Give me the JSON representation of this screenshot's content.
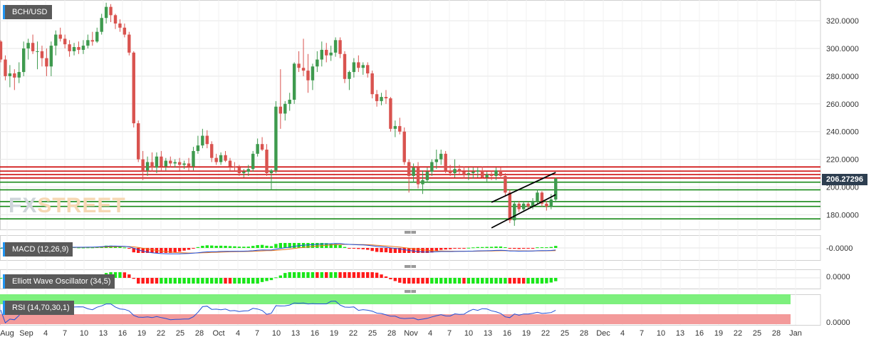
{
  "symbol": "BCH/USD",
  "current_price_label": "206.27296",
  "watermark": {
    "part1": "FX",
    "part2": "STREET"
  },
  "indicators": {
    "macd": "MACD (12,26,9)",
    "ewo": "Elliott Wave Oscillator (34,5)",
    "rsi": "RSI (14,70,30,1)"
  },
  "colors": {
    "up": "#3e9a4e",
    "down": "#d9534f",
    "grid": "#e6e6e6",
    "resistance": "#cc0000",
    "support": "#1a8a1a",
    "trendline": "#000000",
    "macd_line": "#1f4fd8",
    "signal_line": "#e8731a",
    "rsi_line": "#1f4fd8",
    "hist_pos": "#19e619",
    "hist_neg": "#ff1a1a"
  },
  "chart_data": {
    "type": "candlestick",
    "price_axis": {
      "min": 170,
      "max": 332,
      "ticks": [
        "320.0000",
        "300.0000",
        "280.0000",
        "260.0000",
        "240.0000",
        "220.0000",
        "200.0000",
        "180.0000"
      ]
    },
    "macd_axis": {
      "ticks": [
        "-0.0000"
      ]
    },
    "ewo_axis": {
      "ticks": [
        "0.0000"
      ]
    },
    "rsi_axis": {
      "ticks": [
        "0.0000"
      ]
    },
    "x_labels": [
      "Aug",
      "Sep",
      "4",
      "7",
      "10",
      "13",
      "16",
      "19",
      "22",
      "25",
      "28",
      "Oct",
      "4",
      "7",
      "10",
      "13",
      "16",
      "19",
      "22",
      "25",
      "28",
      "Nov",
      "4",
      "7",
      "10",
      "13",
      "16",
      "19",
      "22",
      "25",
      "28",
      "Dec",
      "4",
      "7",
      "10",
      "13",
      "16",
      "19",
      "22",
      "25",
      "28",
      "Jan"
    ],
    "horizontal_levels": {
      "resistance": [
        214.5,
        211.5,
        209,
        206.5
      ],
      "support": [
        203.5,
        198,
        189.5,
        186,
        177
      ]
    },
    "trend_channel": {
      "upper": {
        "from": [
          "2018-12-15",
          189
        ],
        "to": [
          "2018-12-29",
          210.5
        ]
      },
      "lower": {
        "from": [
          "2018-12-15",
          170.5
        ],
        "to": [
          "2018-12-29",
          194.5
        ]
      }
    },
    "candles": [
      {
        "date": "2018-08-30",
        "o": 305,
        "h": 306,
        "l": 290,
        "c": 292
      },
      {
        "date": "2018-08-31",
        "o": 292,
        "h": 295,
        "l": 277,
        "c": 280
      },
      {
        "date": "2018-09-01",
        "o": 280,
        "h": 288,
        "l": 272,
        "c": 282
      },
      {
        "date": "2018-09-02",
        "o": 282,
        "h": 285,
        "l": 270,
        "c": 279
      },
      {
        "date": "2018-09-03",
        "o": 279,
        "h": 290,
        "l": 275,
        "c": 283
      },
      {
        "date": "2018-09-04",
        "o": 283,
        "h": 305,
        "l": 280,
        "c": 300
      },
      {
        "date": "2018-09-05",
        "o": 300,
        "h": 307,
        "l": 292,
        "c": 304
      },
      {
        "date": "2018-09-06",
        "o": 304,
        "h": 310,
        "l": 296,
        "c": 298
      },
      {
        "date": "2018-09-07",
        "o": 298,
        "h": 305,
        "l": 285,
        "c": 298
      },
      {
        "date": "2018-09-08",
        "o": 298,
        "h": 302,
        "l": 287,
        "c": 293
      },
      {
        "date": "2018-09-09",
        "o": 293,
        "h": 300,
        "l": 280,
        "c": 287
      },
      {
        "date": "2018-09-10",
        "o": 287,
        "h": 305,
        "l": 280,
        "c": 302
      },
      {
        "date": "2018-09-11",
        "o": 302,
        "h": 313,
        "l": 295,
        "c": 310
      },
      {
        "date": "2018-09-12",
        "o": 310,
        "h": 315,
        "l": 305,
        "c": 307
      },
      {
        "date": "2018-09-13",
        "o": 307,
        "h": 310,
        "l": 300,
        "c": 303
      },
      {
        "date": "2018-09-14",
        "o": 303,
        "h": 306,
        "l": 294,
        "c": 298
      },
      {
        "date": "2018-09-15",
        "o": 298,
        "h": 304,
        "l": 295,
        "c": 301
      },
      {
        "date": "2018-09-16",
        "o": 301,
        "h": 305,
        "l": 296,
        "c": 299
      },
      {
        "date": "2018-09-17",
        "o": 299,
        "h": 306,
        "l": 296,
        "c": 302
      },
      {
        "date": "2018-09-18",
        "o": 302,
        "h": 310,
        "l": 300,
        "c": 306
      },
      {
        "date": "2018-09-19",
        "o": 306,
        "h": 312,
        "l": 302,
        "c": 305
      },
      {
        "date": "2018-09-20",
        "o": 305,
        "h": 315,
        "l": 304,
        "c": 312
      },
      {
        "date": "2018-09-21",
        "o": 312,
        "h": 325,
        "l": 310,
        "c": 322
      },
      {
        "date": "2018-09-22",
        "o": 322,
        "h": 333,
        "l": 318,
        "c": 330
      },
      {
        "date": "2018-09-23",
        "o": 330,
        "h": 332,
        "l": 319,
        "c": 324
      },
      {
        "date": "2018-09-24",
        "o": 324,
        "h": 325,
        "l": 314,
        "c": 318
      },
      {
        "date": "2018-09-25",
        "o": 318,
        "h": 321,
        "l": 312,
        "c": 315
      },
      {
        "date": "2018-09-26",
        "o": 315,
        "h": 318,
        "l": 308,
        "c": 310
      },
      {
        "date": "2018-09-27",
        "o": 310,
        "h": 312,
        "l": 295,
        "c": 297
      },
      {
        "date": "2018-09-28",
        "o": 297,
        "h": 298,
        "l": 243,
        "c": 246
      },
      {
        "date": "2018-09-29",
        "o": 246,
        "h": 248,
        "l": 218,
        "c": 220
      },
      {
        "date": "2018-09-30",
        "o": 220,
        "h": 226,
        "l": 205,
        "c": 212
      },
      {
        "date": "2018-10-01",
        "o": 212,
        "h": 222,
        "l": 208,
        "c": 218
      },
      {
        "date": "2018-10-02",
        "o": 218,
        "h": 225,
        "l": 211,
        "c": 214
      },
      {
        "date": "2018-10-03",
        "o": 214,
        "h": 225,
        "l": 210,
        "c": 222
      },
      {
        "date": "2018-10-04",
        "o": 222,
        "h": 226,
        "l": 212,
        "c": 215
      },
      {
        "date": "2018-10-05",
        "o": 215,
        "h": 221,
        "l": 212,
        "c": 219
      },
      {
        "date": "2018-10-06",
        "o": 219,
        "h": 222,
        "l": 214,
        "c": 217
      },
      {
        "date": "2018-10-07",
        "o": 217,
        "h": 220,
        "l": 214,
        "c": 218
      },
      {
        "date": "2018-10-08",
        "o": 218,
        "h": 221,
        "l": 212,
        "c": 216
      },
      {
        "date": "2018-10-09",
        "o": 216,
        "h": 219,
        "l": 213,
        "c": 217
      },
      {
        "date": "2018-10-10",
        "o": 217,
        "h": 221,
        "l": 212,
        "c": 215
      },
      {
        "date": "2018-10-11",
        "o": 215,
        "h": 229,
        "l": 212,
        "c": 226
      },
      {
        "date": "2018-10-12",
        "o": 226,
        "h": 237,
        "l": 224,
        "c": 230
      },
      {
        "date": "2018-10-13",
        "o": 230,
        "h": 242,
        "l": 228,
        "c": 237
      },
      {
        "date": "2018-10-14",
        "o": 237,
        "h": 241,
        "l": 228,
        "c": 231
      },
      {
        "date": "2018-10-15",
        "o": 231,
        "h": 233,
        "l": 218,
        "c": 221
      },
      {
        "date": "2018-10-16",
        "o": 221,
        "h": 224,
        "l": 216,
        "c": 218
      },
      {
        "date": "2018-10-17",
        "o": 218,
        "h": 225,
        "l": 216,
        "c": 223
      },
      {
        "date": "2018-10-18",
        "o": 223,
        "h": 226,
        "l": 218,
        "c": 219
      },
      {
        "date": "2018-10-19",
        "o": 219,
        "h": 221,
        "l": 212,
        "c": 215
      },
      {
        "date": "2018-10-20",
        "o": 215,
        "h": 218,
        "l": 212,
        "c": 214
      },
      {
        "date": "2018-10-21",
        "o": 214,
        "h": 216,
        "l": 208,
        "c": 210
      },
      {
        "date": "2018-10-22",
        "o": 210,
        "h": 213,
        "l": 207,
        "c": 211
      },
      {
        "date": "2018-10-23",
        "o": 211,
        "h": 216,
        "l": 208,
        "c": 213
      },
      {
        "date": "2018-10-24",
        "o": 213,
        "h": 226,
        "l": 211,
        "c": 224
      },
      {
        "date": "2018-10-25",
        "o": 224,
        "h": 235,
        "l": 222,
        "c": 231
      },
      {
        "date": "2018-10-26",
        "o": 231,
        "h": 236,
        "l": 226,
        "c": 227
      },
      {
        "date": "2018-10-27",
        "o": 227,
        "h": 231,
        "l": 208,
        "c": 210
      },
      {
        "date": "2018-10-28",
        "o": 210,
        "h": 213,
        "l": 198,
        "c": 212
      },
      {
        "date": "2018-10-29",
        "o": 212,
        "h": 262,
        "l": 210,
        "c": 258
      },
      {
        "date": "2018-10-30",
        "o": 258,
        "h": 285,
        "l": 242,
        "c": 253
      },
      {
        "date": "2018-10-31",
        "o": 253,
        "h": 262,
        "l": 248,
        "c": 260
      },
      {
        "date": "2018-11-01",
        "o": 260,
        "h": 268,
        "l": 255,
        "c": 263
      },
      {
        "date": "2018-11-02",
        "o": 263,
        "h": 290,
        "l": 260,
        "c": 289
      },
      {
        "date": "2018-11-03",
        "o": 289,
        "h": 298,
        "l": 283,
        "c": 286
      },
      {
        "date": "2018-11-04",
        "o": 286,
        "h": 307,
        "l": 280,
        "c": 284
      },
      {
        "date": "2018-11-05",
        "o": 284,
        "h": 296,
        "l": 268,
        "c": 277
      },
      {
        "date": "2018-11-06",
        "o": 277,
        "h": 289,
        "l": 270,
        "c": 287
      },
      {
        "date": "2018-11-07",
        "o": 287,
        "h": 298,
        "l": 283,
        "c": 292
      },
      {
        "date": "2018-11-08",
        "o": 292,
        "h": 305,
        "l": 287,
        "c": 299
      },
      {
        "date": "2018-11-09",
        "o": 299,
        "h": 304,
        "l": 290,
        "c": 295
      },
      {
        "date": "2018-11-10",
        "o": 295,
        "h": 302,
        "l": 291,
        "c": 297
      },
      {
        "date": "2018-11-11",
        "o": 297,
        "h": 308,
        "l": 294,
        "c": 306
      },
      {
        "date": "2018-11-12",
        "o": 306,
        "h": 308,
        "l": 293,
        "c": 296
      },
      {
        "date": "2018-11-13",
        "o": 296,
        "h": 298,
        "l": 275,
        "c": 278
      },
      {
        "date": "2018-11-14",
        "o": 278,
        "h": 284,
        "l": 270,
        "c": 283
      },
      {
        "date": "2018-11-15",
        "o": 283,
        "h": 293,
        "l": 279,
        "c": 290
      },
      {
        "date": "2018-11-16",
        "o": 290,
        "h": 295,
        "l": 283,
        "c": 286
      },
      {
        "date": "2018-11-17",
        "o": 286,
        "h": 290,
        "l": 281,
        "c": 288
      },
      {
        "date": "2018-11-18",
        "o": 288,
        "h": 290,
        "l": 279,
        "c": 282
      },
      {
        "date": "2018-11-19",
        "o": 282,
        "h": 284,
        "l": 264,
        "c": 267
      },
      {
        "date": "2018-11-20",
        "o": 267,
        "h": 270,
        "l": 258,
        "c": 262
      },
      {
        "date": "2018-11-21",
        "o": 262,
        "h": 268,
        "l": 259,
        "c": 265
      },
      {
        "date": "2018-11-22",
        "o": 265,
        "h": 270,
        "l": 260,
        "c": 264
      },
      {
        "date": "2018-11-23",
        "o": 264,
        "h": 265,
        "l": 240,
        "c": 242
      },
      {
        "date": "2018-11-24",
        "o": 242,
        "h": 248,
        "l": 236,
        "c": 244
      },
      {
        "date": "2018-11-25",
        "o": 244,
        "h": 250,
        "l": 238,
        "c": 240
      },
      {
        "date": "2018-11-26",
        "o": 240,
        "h": 243,
        "l": 216,
        "c": 218
      },
      {
        "date": "2018-11-27",
        "o": 218,
        "h": 220,
        "l": 196,
        "c": 208
      },
      {
        "date": "2018-11-28",
        "o": 208,
        "h": 217,
        "l": 203,
        "c": 214
      },
      {
        "date": "2018-11-29",
        "o": 214,
        "h": 218,
        "l": 199,
        "c": 202
      },
      {
        "date": "2018-11-30",
        "o": 202,
        "h": 212,
        "l": 195,
        "c": 205
      },
      {
        "date": "2018-12-01",
        "o": 205,
        "h": 214,
        "l": 203,
        "c": 211
      },
      {
        "date": "2018-12-02",
        "o": 211,
        "h": 220,
        "l": 208,
        "c": 218
      },
      {
        "date": "2018-12-03",
        "o": 218,
        "h": 227,
        "l": 213,
        "c": 220
      },
      {
        "date": "2018-12-04",
        "o": 220,
        "h": 227,
        "l": 216,
        "c": 224
      },
      {
        "date": "2018-12-05",
        "o": 224,
        "h": 226,
        "l": 210,
        "c": 212
      },
      {
        "date": "2018-12-06",
        "o": 212,
        "h": 216,
        "l": 208,
        "c": 210
      },
      {
        "date": "2018-12-07",
        "o": 210,
        "h": 220,
        "l": 207,
        "c": 213
      },
      {
        "date": "2018-12-08",
        "o": 213,
        "h": 216,
        "l": 209,
        "c": 211
      },
      {
        "date": "2018-12-09",
        "o": 211,
        "h": 215,
        "l": 206,
        "c": 209
      },
      {
        "date": "2018-12-10",
        "o": 209,
        "h": 214,
        "l": 205,
        "c": 210
      },
      {
        "date": "2018-12-11",
        "o": 210,
        "h": 214,
        "l": 206,
        "c": 211
      },
      {
        "date": "2018-12-12",
        "o": 211,
        "h": 214,
        "l": 207,
        "c": 212
      },
      {
        "date": "2018-12-13",
        "o": 212,
        "h": 215,
        "l": 206,
        "c": 207
      },
      {
        "date": "2018-12-14",
        "o": 207,
        "h": 211,
        "l": 204,
        "c": 209
      },
      {
        "date": "2018-12-15",
        "o": 209,
        "h": 212,
        "l": 205,
        "c": 208
      },
      {
        "date": "2018-12-16",
        "o": 208,
        "h": 214,
        "l": 205,
        "c": 212
      },
      {
        "date": "2018-12-17",
        "o": 212,
        "h": 214,
        "l": 206,
        "c": 208
      },
      {
        "date": "2018-12-18",
        "o": 208,
        "h": 210,
        "l": 193,
        "c": 196
      },
      {
        "date": "2018-12-19",
        "o": 196,
        "h": 198,
        "l": 174,
        "c": 176
      },
      {
        "date": "2018-12-20",
        "o": 176,
        "h": 190,
        "l": 172,
        "c": 188
      },
      {
        "date": "2018-12-21",
        "o": 188,
        "h": 190,
        "l": 182,
        "c": 184
      },
      {
        "date": "2018-12-22",
        "o": 184,
        "h": 190,
        "l": 183,
        "c": 188
      },
      {
        "date": "2018-12-23",
        "o": 188,
        "h": 189,
        "l": 184,
        "c": 186
      },
      {
        "date": "2018-12-24",
        "o": 186,
        "h": 192,
        "l": 184,
        "c": 190
      },
      {
        "date": "2018-12-25",
        "o": 190,
        "h": 198,
        "l": 188,
        "c": 196
      },
      {
        "date": "2018-12-26",
        "o": 196,
        "h": 197,
        "l": 186,
        "c": 188
      },
      {
        "date": "2018-12-27",
        "o": 188,
        "h": 190,
        "l": 183,
        "c": 186
      },
      {
        "date": "2018-12-28",
        "o": 186,
        "h": 195,
        "l": 184,
        "c": 191
      },
      {
        "date": "2018-12-29",
        "o": 191,
        "h": 207,
        "l": 189,
        "c": 206
      }
    ]
  }
}
